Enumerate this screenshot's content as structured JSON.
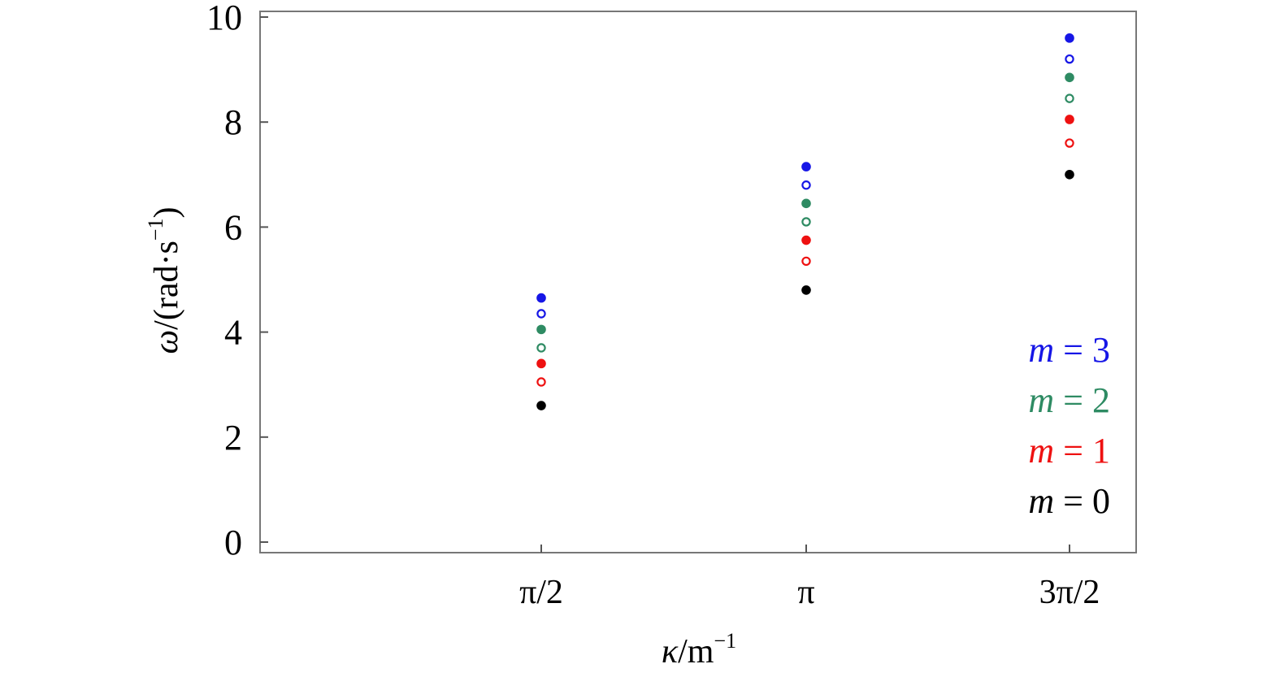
{
  "chart_data": {
    "type": "scatter",
    "title": "",
    "xlabel": {
      "sym": "κ",
      "unit": "/m",
      "sup": "−1"
    },
    "ylabel": {
      "sym": "ω",
      "unit": "/(rad·s",
      "sup": "−1",
      "close": ")"
    },
    "x_tick_labels": [
      "π/2",
      "π",
      "3π/2"
    ],
    "y_ticks": [
      0,
      2,
      4,
      6,
      8,
      10
    ],
    "ylim": [
      0,
      10
    ],
    "grid": false,
    "legend": {
      "placement": "bottom-right",
      "entries": [
        {
          "var": "m",
          "rest": " = 3",
          "color": "#1616e6"
        },
        {
          "var": "m",
          "rest": " = 2",
          "color": "#2e8b63"
        },
        {
          "var": "m",
          "rest": " = 1",
          "color": "#ee1111"
        },
        {
          "var": "m",
          "rest": " = 0",
          "color": "#000000"
        }
      ]
    },
    "series": [
      {
        "color": "#000000",
        "filled": true,
        "values": [
          2.6,
          4.8,
          7.0
        ]
      },
      {
        "color": "#ee1111",
        "filled": false,
        "values": [
          3.05,
          5.35,
          7.6
        ]
      },
      {
        "color": "#ee1111",
        "filled": true,
        "values": [
          3.4,
          5.75,
          8.05
        ]
      },
      {
        "color": "#2e8b63",
        "filled": false,
        "values": [
          3.7,
          6.1,
          8.45
        ]
      },
      {
        "color": "#2e8b63",
        "filled": true,
        "values": [
          4.05,
          6.45,
          8.85
        ]
      },
      {
        "color": "#1616e6",
        "filled": false,
        "values": [
          4.35,
          6.8,
          9.2
        ]
      },
      {
        "color": "#1616e6",
        "filled": true,
        "values": [
          4.65,
          7.15,
          9.6
        ]
      }
    ]
  }
}
